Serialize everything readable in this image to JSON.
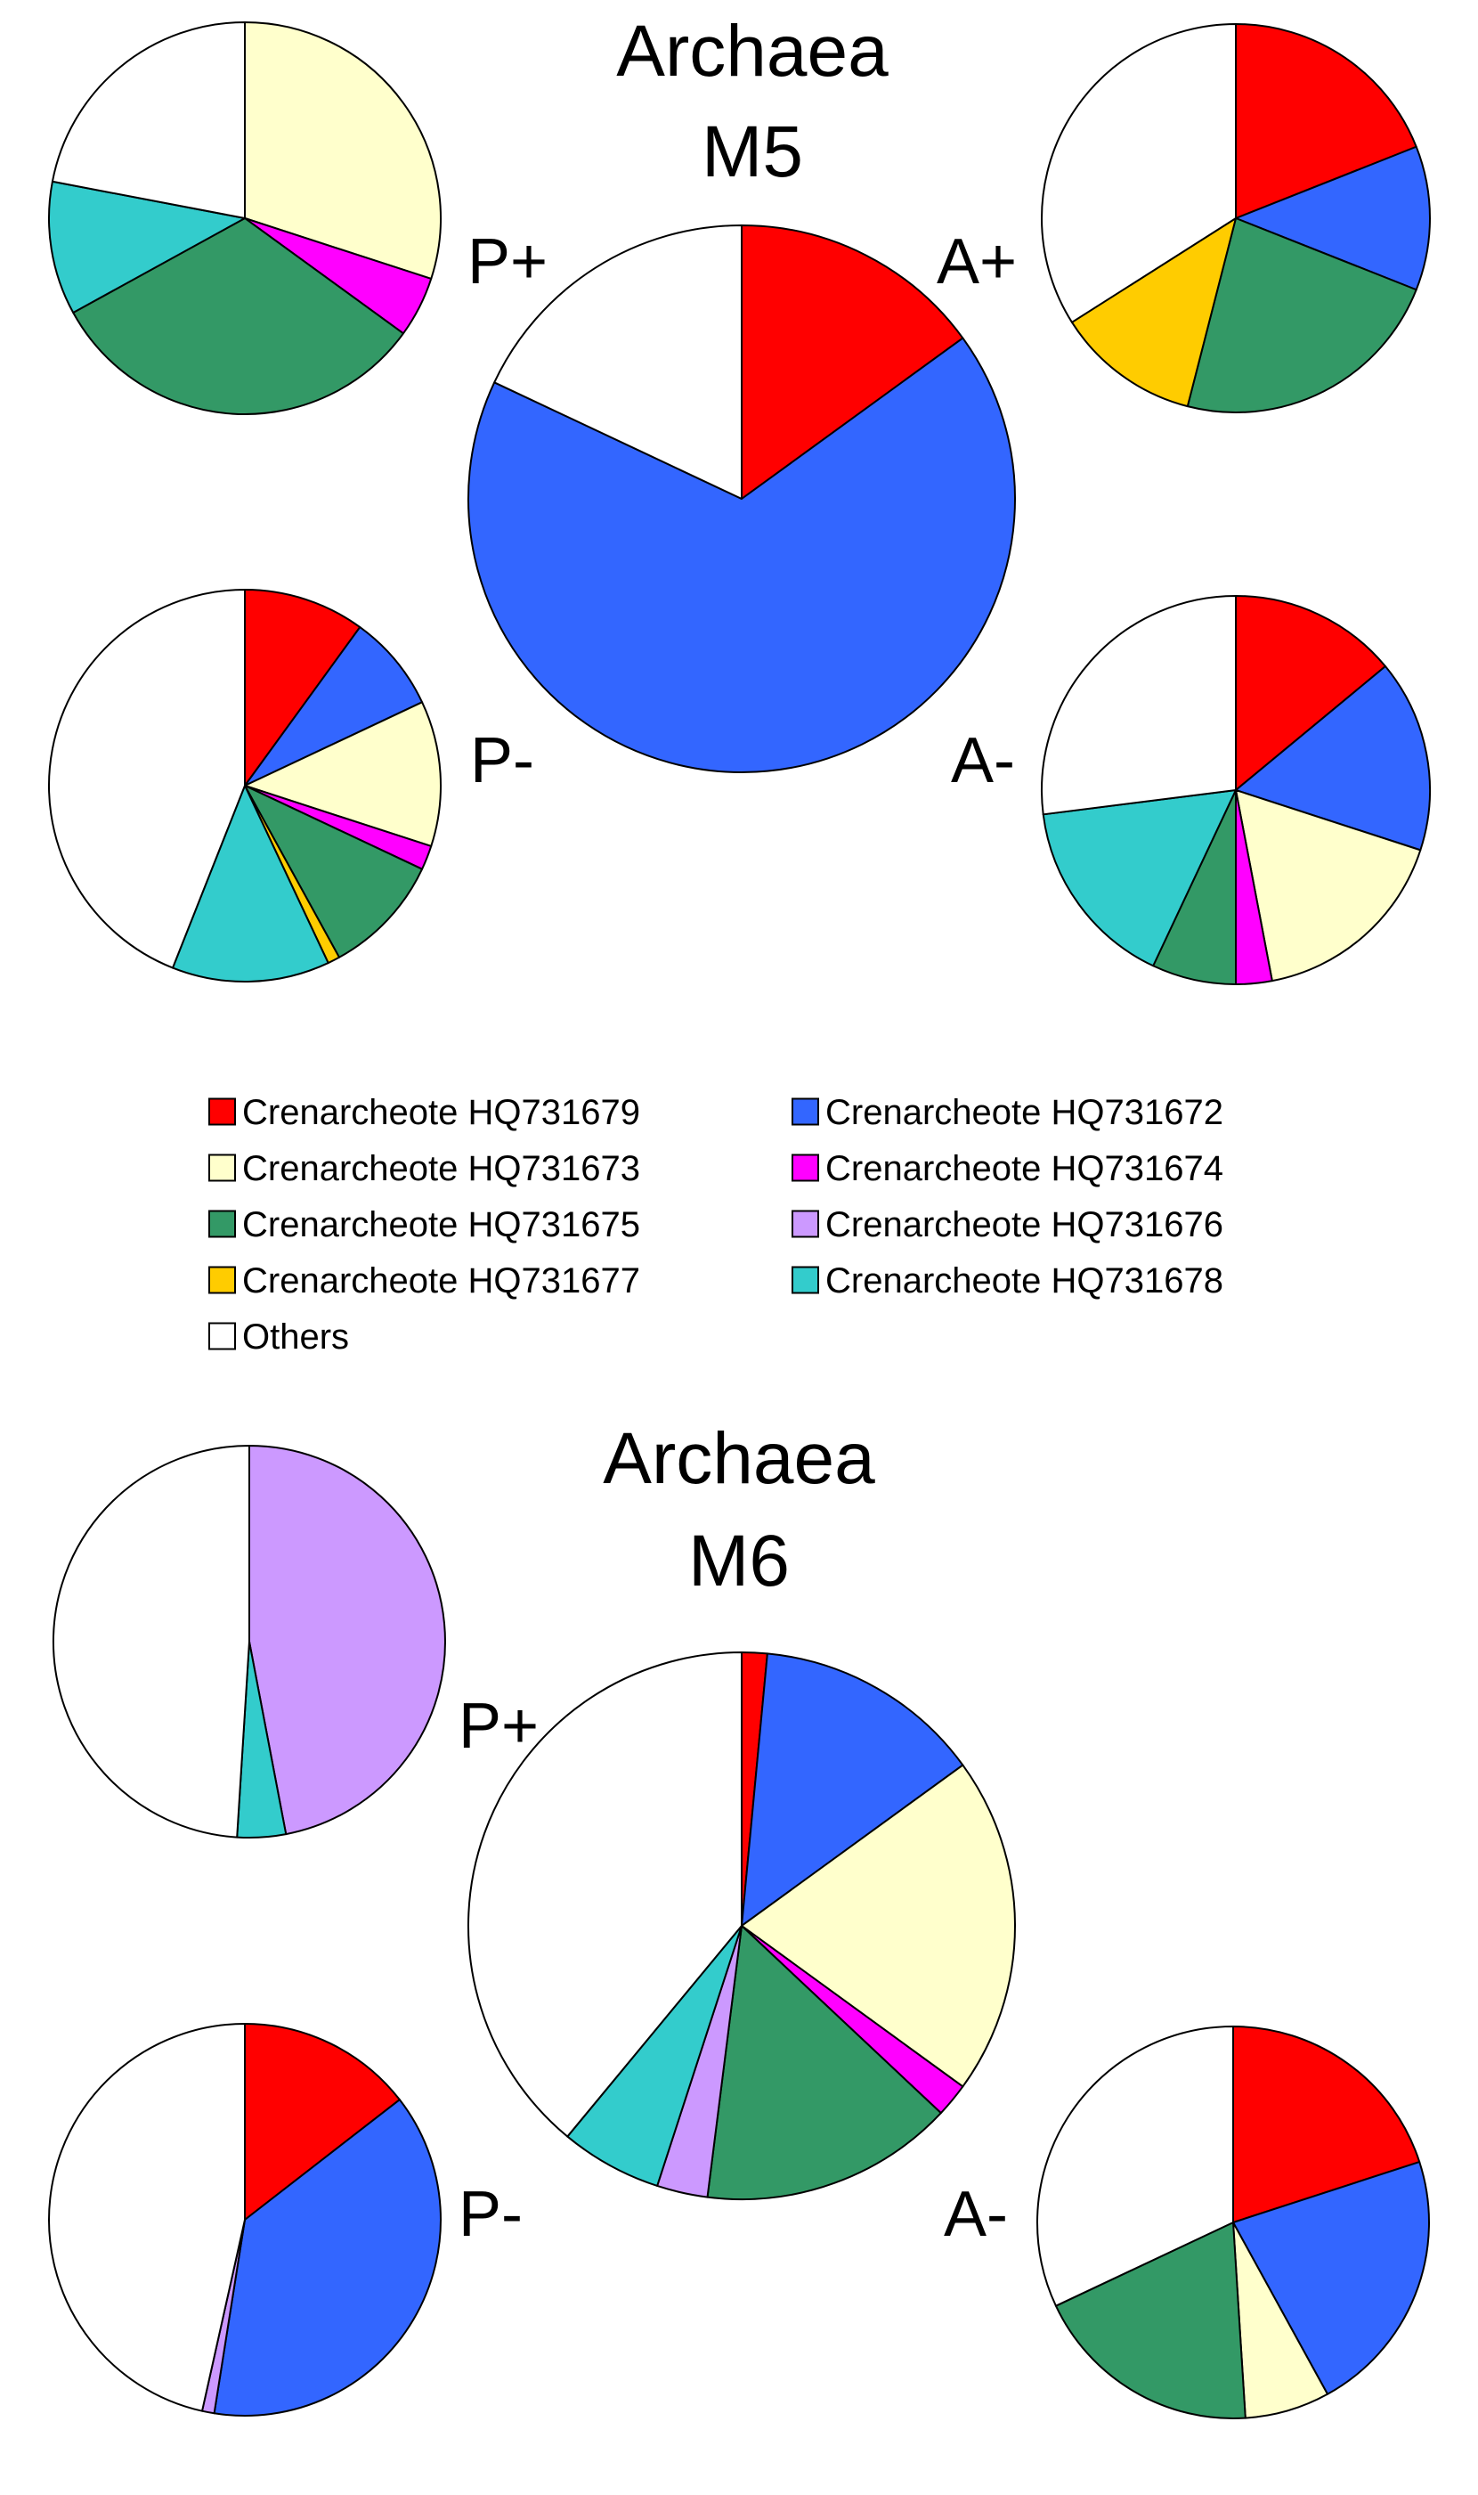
{
  "colors": {
    "HQ731679": "#ff0000",
    "HQ731672": "#3366ff",
    "HQ731673": "#ffffcc",
    "HQ731674": "#ff00ff",
    "HQ731675": "#339966",
    "HQ731676": "#cc99ff",
    "HQ731677": "#ffcc00",
    "HQ731678": "#33cccc",
    "Others": "#ffffff"
  },
  "legend": [
    {
      "key": "HQ731679",
      "label": "Crenarcheote HQ731679"
    },
    {
      "key": "HQ731672",
      "label": "Crenarcheote HQ731672"
    },
    {
      "key": "HQ731673",
      "label": "Crenarcheote HQ731673"
    },
    {
      "key": "HQ731674",
      "label": "Crenarcheote HQ731674"
    },
    {
      "key": "HQ731675",
      "label": "Crenarcheote HQ731675"
    },
    {
      "key": "HQ731676",
      "label": "Crenarcheote HQ731676"
    },
    {
      "key": "HQ731677",
      "label": "Crenarcheote HQ731677"
    },
    {
      "key": "HQ731678",
      "label": "Crenarcheote HQ731678"
    },
    {
      "key": "Others",
      "label": "Others"
    }
  ],
  "panels": [
    {
      "title_line1": "Archaea",
      "title_line2": "M5"
    },
    {
      "title_line1": "Archaea",
      "title_line2": "M6"
    }
  ],
  "chart_data": [
    {
      "type": "pie",
      "panel": "M5",
      "label": "P+",
      "order": [
        "HQ731673",
        "HQ731674",
        "HQ731675",
        "HQ731678",
        "Others"
      ],
      "values": [
        30,
        5,
        32,
        11,
        22
      ]
    },
    {
      "type": "pie",
      "panel": "M5",
      "label": "",
      "order": [
        "HQ731679",
        "HQ731672",
        "Others"
      ],
      "values": [
        15,
        67,
        18
      ]
    },
    {
      "type": "pie",
      "panel": "M5",
      "label": "A+",
      "order": [
        "HQ731679",
        "HQ731672",
        "HQ731675",
        "HQ731677",
        "Others"
      ],
      "values": [
        19,
        12,
        23,
        12,
        34
      ]
    },
    {
      "type": "pie",
      "panel": "M5",
      "label": "P-",
      "order": [
        "HQ731679",
        "HQ731672",
        "HQ731673",
        "HQ731674",
        "HQ731675",
        "HQ731677",
        "HQ731678",
        "Others"
      ],
      "values": [
        10,
        8,
        12,
        2,
        10,
        1,
        13,
        44
      ]
    },
    {
      "type": "pie",
      "panel": "M5",
      "label": "A-",
      "order": [
        "HQ731679",
        "HQ731672",
        "HQ731673",
        "HQ731674",
        "HQ731675",
        "HQ731678",
        "Others"
      ],
      "values": [
        14,
        16,
        17,
        3,
        7,
        16,
        27
      ]
    },
    {
      "type": "pie",
      "panel": "M6",
      "label": "",
      "order": [
        "HQ731676",
        "HQ731678",
        "Others"
      ],
      "values": [
        47,
        4,
        49
      ]
    },
    {
      "type": "pie",
      "panel": "M6",
      "label": "P+",
      "order": [
        "HQ731679",
        "HQ731672",
        "HQ731673",
        "HQ731674",
        "HQ731675",
        "HQ731676",
        "HQ731678",
        "Others"
      ],
      "values": [
        1.5,
        13.5,
        20,
        2,
        15,
        3,
        6,
        39
      ]
    },
    {
      "type": "pie",
      "panel": "M6",
      "label": "P-",
      "order": [
        "HQ731679",
        "HQ731672",
        "HQ731676",
        "Others"
      ],
      "values": [
        14.5,
        38,
        1,
        46.5
      ]
    },
    {
      "type": "pie",
      "panel": "M6",
      "label": "A-",
      "order": [
        "HQ731679",
        "HQ731672",
        "HQ731673",
        "HQ731675",
        "Others"
      ],
      "values": [
        20,
        22,
        7,
        19,
        32
      ]
    }
  ]
}
